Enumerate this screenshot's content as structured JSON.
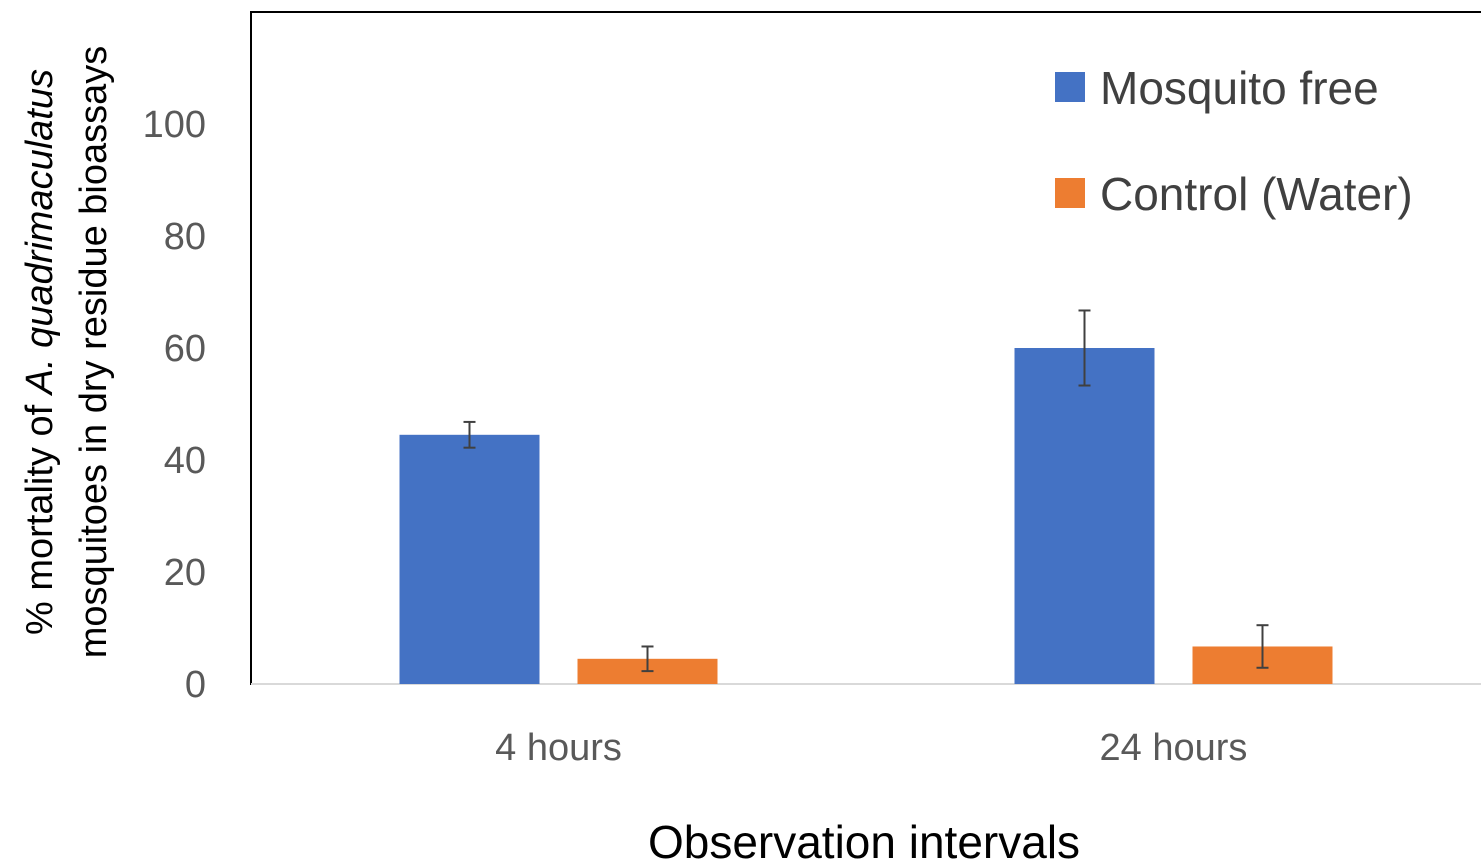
{
  "chart_data": {
    "type": "bar",
    "title": "",
    "categories": [
      "4 hours",
      "24 hours"
    ],
    "series": [
      {
        "name": "Mosquito free",
        "color": "#4472c4",
        "values": [
          44.5,
          60.0
        ],
        "error": [
          2.3,
          6.7
        ]
      },
      {
        "name": "Control (Water)",
        "color": "#ed7d31",
        "values": [
          4.5,
          6.7
        ],
        "error": [
          2.2,
          3.8
        ]
      }
    ],
    "xlabel": "Observation intervals",
    "ylabel_line1_prefix": "% mortality of ",
    "ylabel_line1_italic": "A. quadrimaculatus",
    "ylabel_line2": "mosquitoes in dry residue bioassays",
    "ylim": [
      0,
      120
    ],
    "yticks": [
      0,
      20,
      40,
      60,
      80,
      100
    ],
    "legend_position": "top-right",
    "grid": false
  }
}
